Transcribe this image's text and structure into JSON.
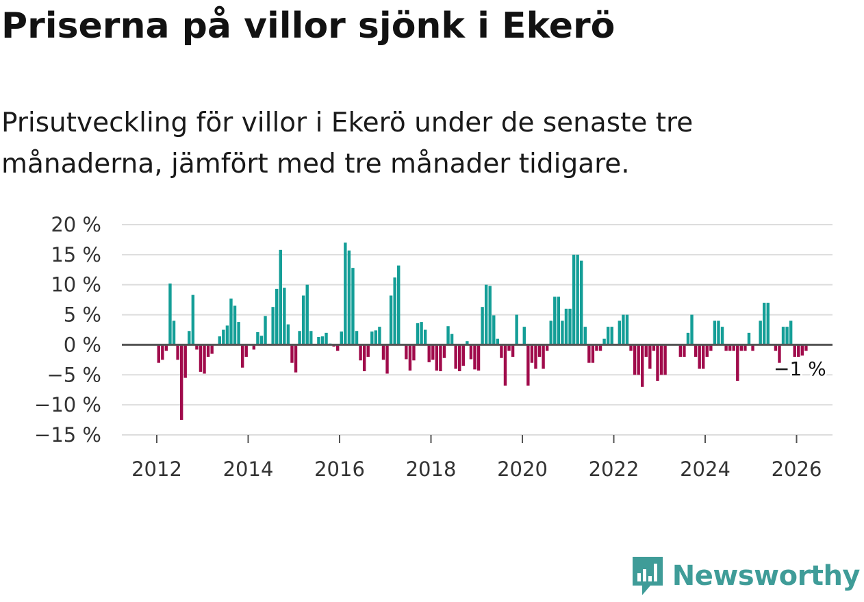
{
  "title": "Priserna på villor sjönk i Ekerö",
  "subtitle": "Prisutveckling för villor i Ekerö under de senaste tre månaderna, jämfört med tre månader tidigare.",
  "brand": {
    "name": "Newsworthy",
    "icon": "newsworthy-logo-icon",
    "color": "#3f9c98"
  },
  "colors": {
    "positive": "#149e97",
    "negative": "#a00b4b",
    "grid": "#dddddd",
    "zero": "#555555"
  },
  "chart_data": {
    "type": "bar",
    "title": "Priserna på villor sjönk i Ekerö",
    "xlabel": "",
    "ylabel": "",
    "ylim": [
      -15,
      20
    ],
    "y_ticks": [
      {
        "value": 20,
        "label": "20 %"
      },
      {
        "value": 15,
        "label": "15 %"
      },
      {
        "value": 10,
        "label": "10 %"
      },
      {
        "value": 5,
        "label": "5 %"
      },
      {
        "value": 0,
        "label": "0 %"
      },
      {
        "value": -5,
        "label": "−5 %"
      },
      {
        "value": -10,
        "label": "−10 %"
      },
      {
        "value": -15,
        "label": "−15 %"
      }
    ],
    "x_ticks": [
      "2012",
      "2014",
      "2016",
      "2018",
      "2020",
      "2022",
      "2024",
      "2026"
    ],
    "start": "2012-01",
    "end_label": "−1 %",
    "series": [
      {
        "name": "Prisutveckling",
        "values": [
          -3,
          -2.5,
          -1,
          10.2,
          4,
          -2.5,
          -12.5,
          -5.5,
          2.3,
          8.3,
          -0.8,
          -4.5,
          -4.8,
          -2,
          -1.5,
          0,
          1.4,
          2.5,
          3.2,
          7.7,
          6.5,
          3.8,
          -3.8,
          -2,
          0,
          -0.8,
          2.1,
          1.5,
          4.8,
          0,
          6.3,
          9.3,
          15.8,
          9.5,
          3.4,
          -3,
          -4.6,
          2.3,
          8.2,
          10,
          2.3,
          0,
          1.3,
          1.4,
          2,
          0.2,
          -0.3,
          -1,
          2.2,
          17,
          15.7,
          12.8,
          2.3,
          -2.6,
          -4.4,
          -2,
          2.2,
          2.4,
          3,
          -2.5,
          -4.8,
          8.2,
          11.2,
          13.2,
          0,
          -2.4,
          -4.3,
          -2.6,
          3.6,
          3.8,
          2.5,
          -2.9,
          -2.5,
          -4.3,
          -4.4,
          -2.2,
          3.1,
          1.8,
          -4,
          -4.4,
          -3.5,
          0.6,
          -2.4,
          -4.1,
          -4.3,
          6.3,
          10,
          9.8,
          4.9,
          1,
          -2.2,
          -6.8,
          -1,
          -2,
          5,
          0,
          3,
          -6.8,
          -3,
          -4,
          -2,
          -4,
          -1,
          4,
          8,
          8,
          4,
          6,
          6,
          15,
          15,
          14,
          3,
          -3,
          -3,
          -1,
          -1,
          1,
          3,
          3,
          0,
          4,
          5,
          5,
          -1,
          -5,
          -5,
          -7,
          -2,
          -4,
          -1,
          -6,
          -5,
          -5,
          0,
          0,
          0,
          -2,
          -2,
          2,
          5,
          -2,
          -4,
          -4,
          -2,
          -1,
          4,
          4,
          3,
          -1,
          -1,
          -1,
          -6,
          -1,
          -1,
          2,
          -1,
          0,
          4,
          7,
          7,
          0,
          -1,
          -3,
          3,
          3,
          4,
          -2,
          -2,
          -1.8,
          -1
        ]
      }
    ]
  }
}
